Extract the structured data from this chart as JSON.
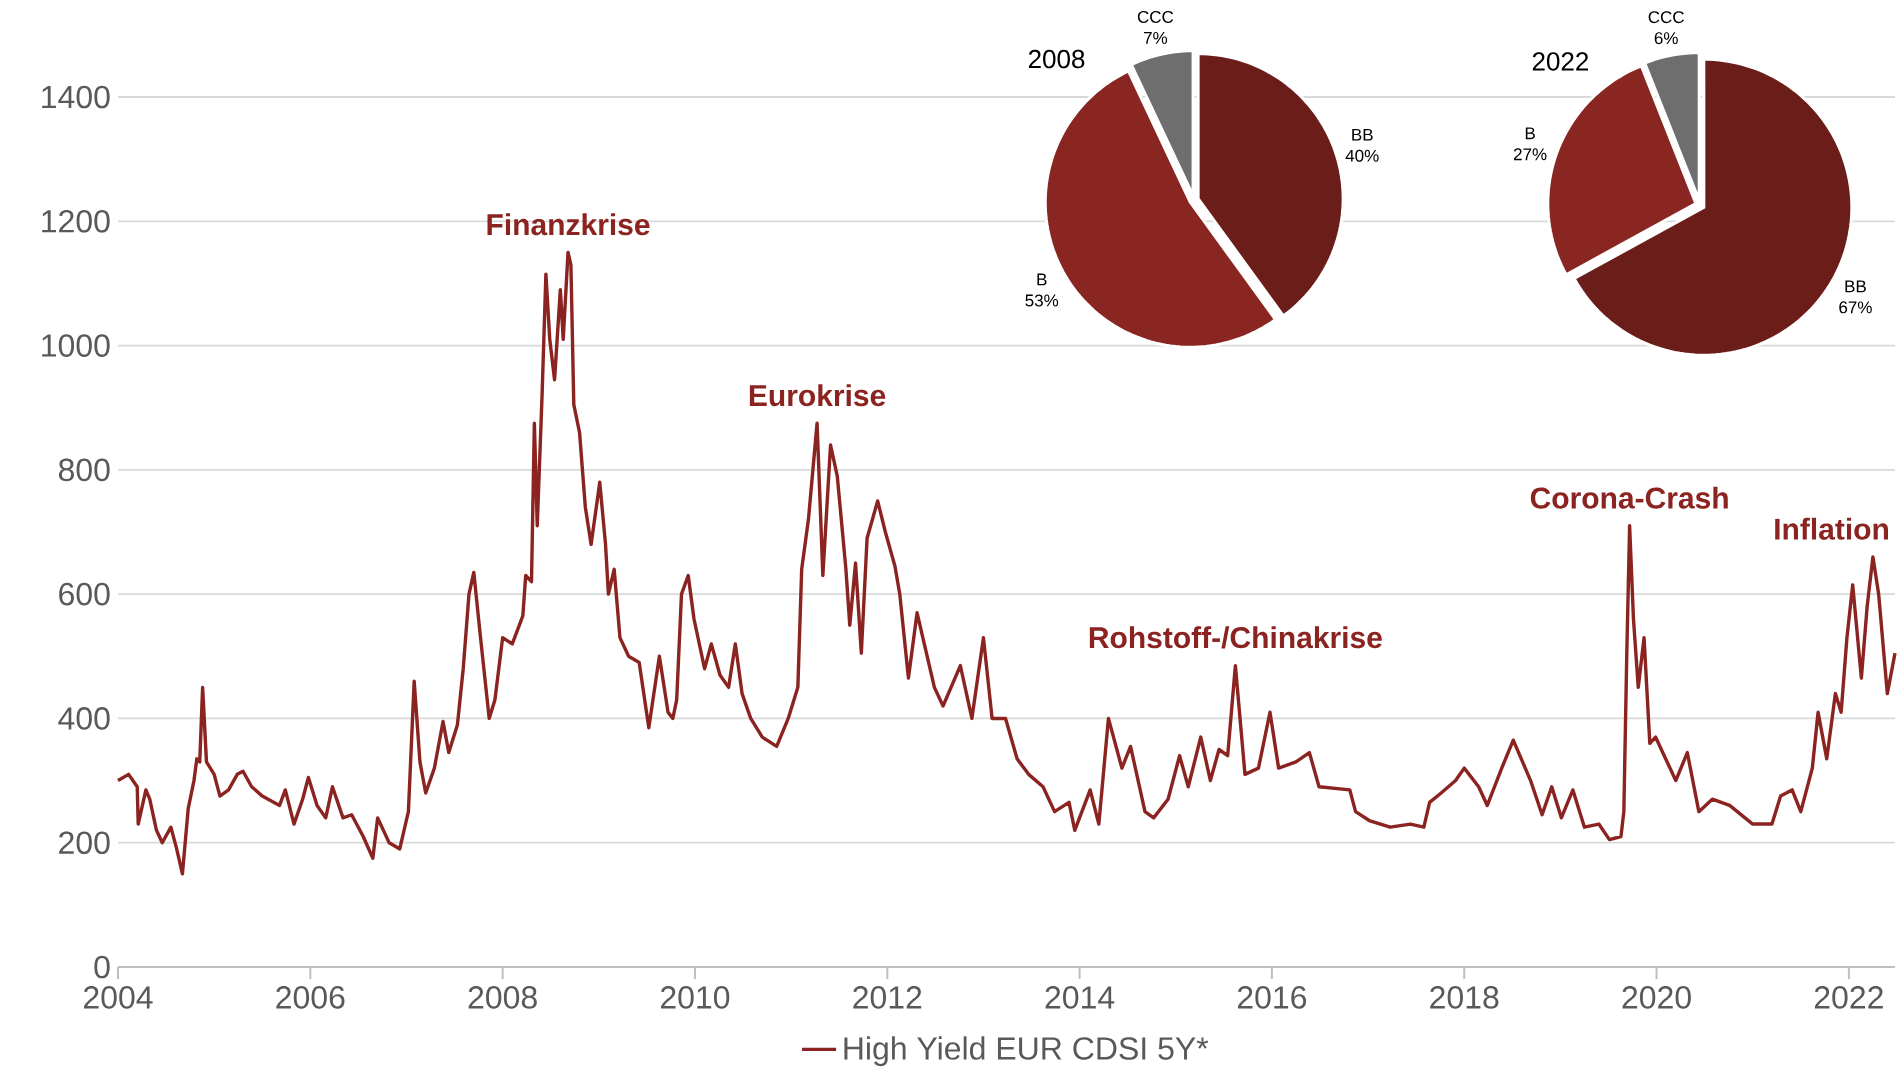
{
  "chart_data": [
    {
      "type": "line",
      "xlim": [
        2004,
        2022.48
      ],
      "xticks": [
        2004,
        2006,
        2008,
        2010,
        2012,
        2014,
        2016,
        2018,
        2020,
        2022
      ],
      "ylim": [
        0,
        1400
      ],
      "yticks": [
        0,
        200,
        400,
        600,
        800,
        1000,
        1200,
        1400
      ],
      "grid": "y",
      "legend": "bottom",
      "x": [
        2004.0,
        2004.11,
        2004.2,
        2004.21,
        2004.29,
        2004.33,
        2004.4,
        2004.46,
        2004.55,
        2004.61,
        2004.67,
        2004.73,
        2004.79,
        2004.82,
        2004.85,
        2004.88,
        2004.92,
        2005.0,
        2005.06,
        2005.15,
        2005.24,
        2005.3,
        2005.39,
        2005.5,
        2005.68,
        2005.74,
        2005.83,
        2005.92,
        2005.98,
        2006.07,
        2006.16,
        2006.23,
        2006.34,
        2006.43,
        2006.55,
        2006.65,
        2006.7,
        2006.82,
        2006.93,
        2007.02,
        2007.08,
        2007.14,
        2007.2,
        2007.29,
        2007.38,
        2007.44,
        2007.53,
        2007.59,
        2007.65,
        2007.7,
        2007.77,
        2007.86,
        2007.92,
        2008.0,
        2008.1,
        2008.21,
        2008.24,
        2008.3,
        2008.33,
        2008.36,
        2008.41,
        2008.45,
        2008.49,
        2008.54,
        2008.6,
        2008.63,
        2008.68,
        2008.71,
        2008.74,
        2008.8,
        2008.86,
        2008.92,
        2009.01,
        2009.07,
        2009.1,
        2009.16,
        2009.22,
        2009.31,
        2009.42,
        2009.52,
        2009.63,
        2009.72,
        2009.77,
        2009.81,
        2009.86,
        2009.93,
        2009.99,
        2010.1,
        2010.17,
        2010.26,
        2010.35,
        2010.42,
        2010.49,
        2010.58,
        2010.7,
        2010.85,
        2010.97,
        2011.07,
        2011.11,
        2011.18,
        2011.27,
        2011.33,
        2011.41,
        2011.48,
        2011.57,
        2011.61,
        2011.67,
        2011.73,
        2011.79,
        2011.9,
        2011.98,
        2012.08,
        2012.13,
        2012.22,
        2012.31,
        2012.4,
        2012.49,
        2012.58,
        2012.76,
        2012.88,
        2013.0,
        2013.09,
        2013.23,
        2013.35,
        2013.47,
        2013.62,
        2013.74,
        2013.89,
        2013.95,
        2014.11,
        2014.2,
        2014.3,
        2014.44,
        2014.53,
        2014.68,
        2014.77,
        2014.92,
        2015.04,
        2015.13,
        2015.26,
        2015.36,
        2015.45,
        2015.54,
        2015.62,
        2015.72,
        2015.86,
        2015.98,
        2016.07,
        2016.25,
        2016.39,
        2016.49,
        2016.81,
        2016.87,
        2017.02,
        2017.23,
        2017.44,
        2017.58,
        2017.64,
        2017.76,
        2017.91,
        2018.0,
        2018.15,
        2018.24,
        2018.39,
        2018.51,
        2018.69,
        2018.81,
        2018.91,
        2019.01,
        2019.13,
        2019.25,
        2019.4,
        2019.51,
        2019.63,
        2019.66,
        2019.69,
        2019.72,
        2019.76,
        2019.81,
        2019.87,
        2019.93,
        2019.99,
        2020.08,
        2020.2,
        2020.32,
        2020.44,
        2020.58,
        2020.76,
        2021.0,
        2021.2,
        2021.29,
        2021.41,
        2021.5,
        2021.62,
        2021.68,
        2021.77,
        2021.86,
        2021.92,
        2021.98,
        2022.04,
        2022.13,
        2022.19,
        2022.25,
        2022.31,
        2022.4,
        2022.48
      ],
      "series": [
        {
          "name": "High Yield EUR CDSI 5Y*",
          "color": "#8b2320",
          "values": [
            300,
            310,
            290,
            230,
            285,
            270,
            220,
            200,
            225,
            190,
            150,
            255,
            300,
            335,
            330,
            450,
            330,
            310,
            275,
            285,
            310,
            315,
            290,
            275,
            260,
            285,
            230,
            270,
            305,
            260,
            240,
            290,
            240,
            245,
            210,
            175,
            240,
            200,
            190,
            250,
            460,
            330,
            280,
            320,
            395,
            345,
            390,
            480,
            600,
            635,
            530,
            400,
            430,
            530,
            520,
            565,
            630,
            620,
            875,
            710,
            920,
            1115,
            1010,
            945,
            1090,
            1010,
            1150,
            1130,
            905,
            860,
            740,
            680,
            780,
            680,
            600,
            640,
            530,
            500,
            490,
            385,
            500,
            410,
            400,
            430,
            600,
            630,
            560,
            480,
            520,
            470,
            450,
            520,
            440,
            400,
            370,
            355,
            400,
            450,
            640,
            720,
            875,
            630,
            840,
            790,
            640,
            550,
            650,
            505,
            690,
            750,
            700,
            645,
            600,
            465,
            570,
            510,
            450,
            420,
            485,
            400,
            530,
            400,
            400,
            335,
            310,
            290,
            250,
            265,
            220,
            285,
            230,
            400,
            320,
            355,
            250,
            240,
            270,
            340,
            290,
            370,
            300,
            350,
            340,
            485,
            310,
            320,
            410,
            320,
            330,
            345,
            290,
            285,
            250,
            235,
            225,
            230,
            225,
            265,
            280,
            300,
            320,
            290,
            260,
            320,
            365,
            300,
            245,
            290,
            240,
            285,
            225,
            230,
            205,
            210,
            250,
            500,
            710,
            560,
            450,
            530,
            360,
            370,
            340,
            300,
            345,
            250,
            270,
            260,
            230,
            230,
            275,
            285,
            250,
            320,
            410,
            335,
            440,
            410,
            530,
            615,
            465,
            580,
            660,
            600,
            440,
            505
          ]
        }
      ],
      "annotations": [
        {
          "text": "Finanzkrise",
          "x": 2008.68,
          "y": 1150
        },
        {
          "text": "Eurokrise",
          "x": 2011.27,
          "y": 875
        },
        {
          "text": "Rohstoff-/Chinakrise",
          "x": 2015.62,
          "y": 485
        },
        {
          "text": "Corona-Crash",
          "x": 2019.72,
          "y": 710
        },
        {
          "text": "Inflation",
          "x": 2022.25,
          "y": 660
        }
      ]
    },
    {
      "type": "pie",
      "title": "2008",
      "categories": [
        "BB",
        "B",
        "CCC"
      ],
      "values": [
        40,
        53,
        7
      ],
      "colors": [
        "#6b1d1a",
        "#8a2621",
        "#6e6e6e"
      ],
      "value_labels": [
        "40%",
        "53%",
        "7%"
      ]
    },
    {
      "type": "pie",
      "title": "2022",
      "categories": [
        "BB",
        "B",
        "CCC"
      ],
      "values": [
        67,
        27,
        6
      ],
      "colors": [
        "#6b1d1a",
        "#8a2621",
        "#6e6e6e"
      ],
      "value_labels": [
        "67%",
        "27%",
        "6%"
      ]
    }
  ]
}
